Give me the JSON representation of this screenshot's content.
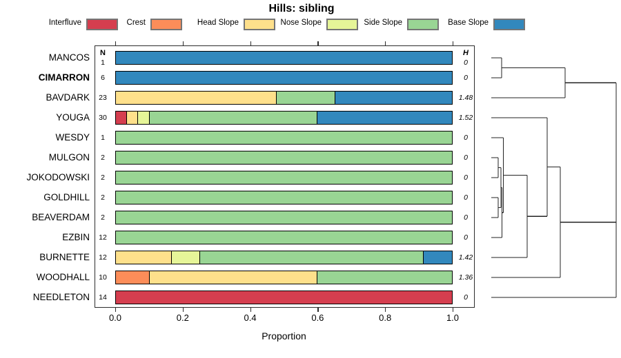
{
  "title": "Hills: sibling",
  "x_axis": {
    "label": "Proportion",
    "tick_labels": [
      "0.0",
      "0.2",
      "0.4",
      "0.6",
      "0.8",
      "1.0"
    ],
    "tick_values": [
      0,
      0.2,
      0.4,
      0.6,
      0.8,
      1.0
    ]
  },
  "col_headers": {
    "n": "N",
    "h": "H"
  },
  "legend": [
    {
      "name": "Interfluve",
      "color": "#D53E4F"
    },
    {
      "name": "Crest",
      "color": "#FC8D59"
    },
    {
      "name": "Head Slope",
      "color": "#FEE08B"
    },
    {
      "name": "Nose Slope",
      "color": "#E6F598"
    },
    {
      "name": "Side Slope",
      "color": "#99D594"
    },
    {
      "name": "Base Slope",
      "color": "#3288BD"
    }
  ],
  "chart_data": {
    "type": "bar",
    "orientation": "horizontal-stacked",
    "title": "Hills: sibling",
    "xlabel": "Proportion",
    "xlim": [
      0,
      1
    ],
    "grid": false,
    "legend_position": "top",
    "categories": [
      "MANCOS",
      "CIMARRON",
      "BAVDARK",
      "YOUGA",
      "WESDY",
      "MULGON",
      "JOKODOWSKI",
      "GOLDHILL",
      "BEAVERDAM",
      "EZBIN",
      "BURNETTE",
      "WOODHALL",
      "NEEDLETON"
    ],
    "highlighted_category": "CIMARRON",
    "series": [
      {
        "name": "Interfluve",
        "color": "#D53E4F",
        "values": [
          0,
          0,
          0,
          0.0333,
          0,
          0,
          0,
          0,
          0,
          0,
          0,
          0,
          1
        ]
      },
      {
        "name": "Crest",
        "color": "#FC8D59",
        "values": [
          0,
          0,
          0,
          0,
          0,
          0,
          0,
          0,
          0,
          0,
          0,
          0.1,
          0
        ]
      },
      {
        "name": "Head Slope",
        "color": "#FEE08B",
        "values": [
          0,
          0,
          0.4783,
          0.0333,
          0,
          0,
          0,
          0,
          0,
          0,
          0.1667,
          0.5,
          0
        ]
      },
      {
        "name": "Nose Slope",
        "color": "#E6F598",
        "values": [
          0,
          0,
          0,
          0.0333,
          0,
          0,
          0,
          0,
          0,
          0,
          0.0833,
          0,
          0
        ]
      },
      {
        "name": "Side Slope",
        "color": "#99D594",
        "values": [
          0,
          0,
          0.1739,
          0.5001,
          1,
          1,
          1,
          1,
          1,
          1,
          0.6667,
          0.4,
          0
        ]
      },
      {
        "name": "Base Slope",
        "color": "#3288BD",
        "values": [
          1,
          1,
          0.3478,
          0.4,
          0,
          0,
          0,
          0,
          0,
          0,
          0.0833,
          0,
          0
        ]
      }
    ],
    "n_values": [
      "1",
      "6",
      "23",
      "30",
      "1",
      "2",
      "2",
      "2",
      "2",
      "12",
      "12",
      "10",
      "14"
    ],
    "h_values": [
      "0",
      "0",
      "1.48",
      "1.52",
      "0",
      "0",
      "0",
      "0",
      "0",
      "0",
      "1.42",
      "1.36",
      "0"
    ]
  },
  "dendrogram": {
    "merges": [
      {
        "id": "m1",
        "a": "MANCOS",
        "b": "CIMARRON",
        "h": 0.083
      },
      {
        "id": "m2",
        "a": "m1",
        "b": "BAVDARK",
        "h": 0.591
      },
      {
        "id": "m3",
        "a": "MULGON",
        "b": "JOKODOWSKI",
        "h": 0.055
      },
      {
        "id": "m4",
        "a": "GOLDHILL",
        "b": "BEAVERDAM",
        "h": 0.055
      },
      {
        "id": "m5",
        "a": "m3",
        "b": "m4",
        "h": 0.077
      },
      {
        "id": "m6",
        "a": "m5",
        "b": "EZBIN",
        "h": 0.086
      },
      {
        "id": "m7",
        "a": "WESDY",
        "b": "m6",
        "h": 0.096
      },
      {
        "id": "m8",
        "a": "m7",
        "b": "BURNETTE",
        "h": 0.287
      },
      {
        "id": "m9",
        "a": "YOUGA",
        "b": "m8",
        "h": 0.448
      },
      {
        "id": "m10",
        "a": "m9",
        "b": "WOODHALL",
        "h": 0.553
      },
      {
        "id": "m11",
        "a": "m10",
        "b": "NEEDLETON",
        "h": 1.0
      },
      {
        "id": "m12",
        "a": "m2",
        "b": "m11",
        "h": 1.0
      }
    ]
  }
}
